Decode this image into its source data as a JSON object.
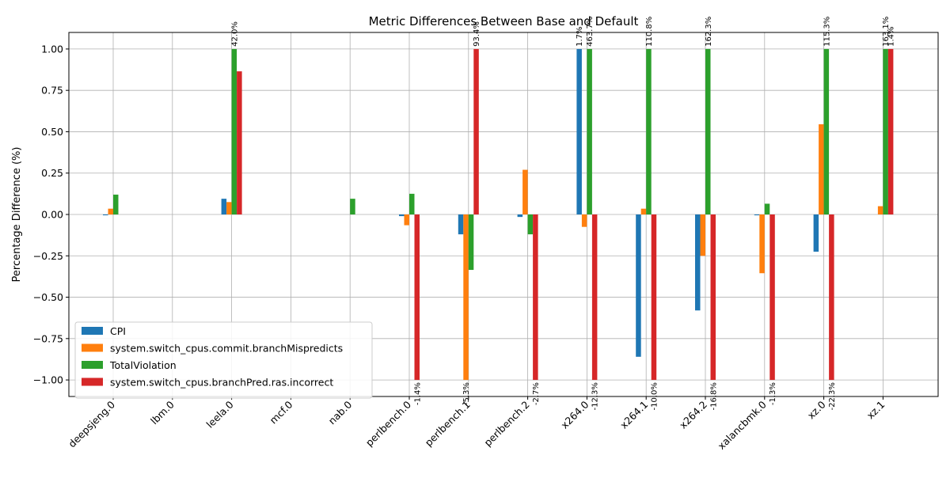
{
  "chart_data": {
    "type": "bar",
    "title": "Metric Differences Between Base and Default",
    "xlabel": "",
    "ylabel": "Percentage Difference (%)",
    "ylim": [
      -1.1,
      1.1
    ],
    "yticks": [
      -1.0,
      -0.75,
      -0.5,
      -0.25,
      0.0,
      0.25,
      0.5,
      0.75,
      1.0
    ],
    "ytick_labels": [
      "−1.00",
      "−0.75",
      "−0.50",
      "−0.25",
      "0.00",
      "0.25",
      "0.50",
      "0.75",
      "1.00"
    ],
    "grid": true,
    "legend_position": "lower-left",
    "categories": [
      "deepsjeng.0",
      "lbm.0",
      "leela.0",
      "mcf.0",
      "nab.0",
      "perlbench.0",
      "perlbench.1",
      "perlbench.2",
      "x264.0",
      "x264.1",
      "x264.2",
      "xalancbmk.0",
      "xz.0",
      "xz.1"
    ],
    "series": [
      {
        "name": "CPI",
        "color": "#1f77b4",
        "values": [
          -0.005,
          0,
          0.095,
          0,
          0,
          -0.01,
          -0.12,
          -0.015,
          1.0,
          -0.86,
          -0.58,
          -0.005,
          -0.225,
          0
        ]
      },
      {
        "name": "system.switch_cpus.commit.branchMispredicts",
        "color": "#ff7f0e",
        "values": [
          0.035,
          0,
          0.075,
          0,
          0,
          -0.065,
          -1.0,
          0.27,
          -0.075,
          0.035,
          -0.25,
          -0.355,
          0.545,
          0.05
        ]
      },
      {
        "name": "TotalViolation",
        "color": "#2ca02c",
        "values": [
          0.12,
          0,
          1.0,
          0,
          0.095,
          0.125,
          -0.335,
          -0.12,
          1.0,
          1.0,
          1.0,
          0.065,
          1.0,
          1.0
        ]
      },
      {
        "name": "system.switch_cpus.branchPred.ras.incorrect",
        "color": "#d62728",
        "values": [
          0,
          0,
          0.865,
          0,
          0,
          -1.0,
          1.0,
          -1.0,
          -1.0,
          -1.0,
          -1.0,
          -1.0,
          -1.0,
          1.0
        ]
      }
    ],
    "annotations": [
      {
        "category": "leela.0",
        "series": 2,
        "text": "42.0%"
      },
      {
        "category": "perlbench.0",
        "series": 3,
        "text": "-1.4%"
      },
      {
        "category": "perlbench.1",
        "series": 1,
        "text": "-5.3%"
      },
      {
        "category": "perlbench.1",
        "series": 3,
        "text": "93.4%"
      },
      {
        "category": "perlbench.2",
        "series": 3,
        "text": "-2.7%"
      },
      {
        "category": "x264.0",
        "series": 0,
        "text": "1.7%"
      },
      {
        "category": "x264.0",
        "series": 2,
        "text": "463.7%"
      },
      {
        "category": "x264.0",
        "series": 3,
        "text": "-12.3%"
      },
      {
        "category": "x264.1",
        "series": 2,
        "text": "110.8%"
      },
      {
        "category": "x264.1",
        "series": 3,
        "text": "-10.0%"
      },
      {
        "category": "x264.2",
        "series": 2,
        "text": "162.3%"
      },
      {
        "category": "x264.2",
        "series": 3,
        "text": "-16.8%"
      },
      {
        "category": "xalancbmk.0",
        "series": 3,
        "text": "-1.3%"
      },
      {
        "category": "xz.0",
        "series": 2,
        "text": "115.3%"
      },
      {
        "category": "xz.0",
        "series": 3,
        "text": "-22.3%"
      },
      {
        "category": "xz.1",
        "series": 2,
        "text": "163.1%"
      },
      {
        "category": "xz.1",
        "series": 3,
        "text": "1.4%"
      }
    ]
  }
}
